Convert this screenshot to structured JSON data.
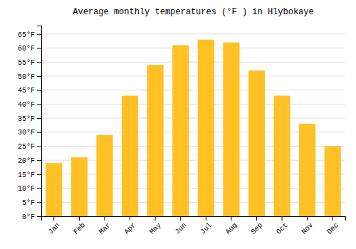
{
  "chart_data": {
    "type": "bar",
    "title": "Average monthly temperatures (°F ) in Hlybokaye",
    "categories": [
      "Jan",
      "Feb",
      "Mar",
      "Apr",
      "May",
      "Jun",
      "Jul",
      "Aug",
      "Sep",
      "Oct",
      "Nov",
      "Dec"
    ],
    "values": [
      19,
      21,
      29,
      43,
      54,
      61,
      63,
      62,
      52,
      43,
      33,
      25
    ],
    "color": "#FFC125",
    "ylim": [
      0,
      68
    ],
    "yticks": [
      {
        "value": 0,
        "label": "0°F"
      },
      {
        "value": 5,
        "label": "5°F"
      },
      {
        "value": 10,
        "label": "10°F"
      },
      {
        "value": 15,
        "label": "15°F"
      },
      {
        "value": 20,
        "label": "20°F"
      },
      {
        "value": 25,
        "label": "25°F"
      },
      {
        "value": 30,
        "label": "30°F"
      },
      {
        "value": 35,
        "label": "35°F"
      },
      {
        "value": 40,
        "label": "40°F"
      },
      {
        "value": 45,
        "label": "45°F"
      },
      {
        "value": 50,
        "label": "50°F"
      },
      {
        "value": 55,
        "label": "55°F"
      },
      {
        "value": 60,
        "label": "60°F"
      },
      {
        "value": 65,
        "label": "65°F"
      }
    ],
    "grid": true
  }
}
